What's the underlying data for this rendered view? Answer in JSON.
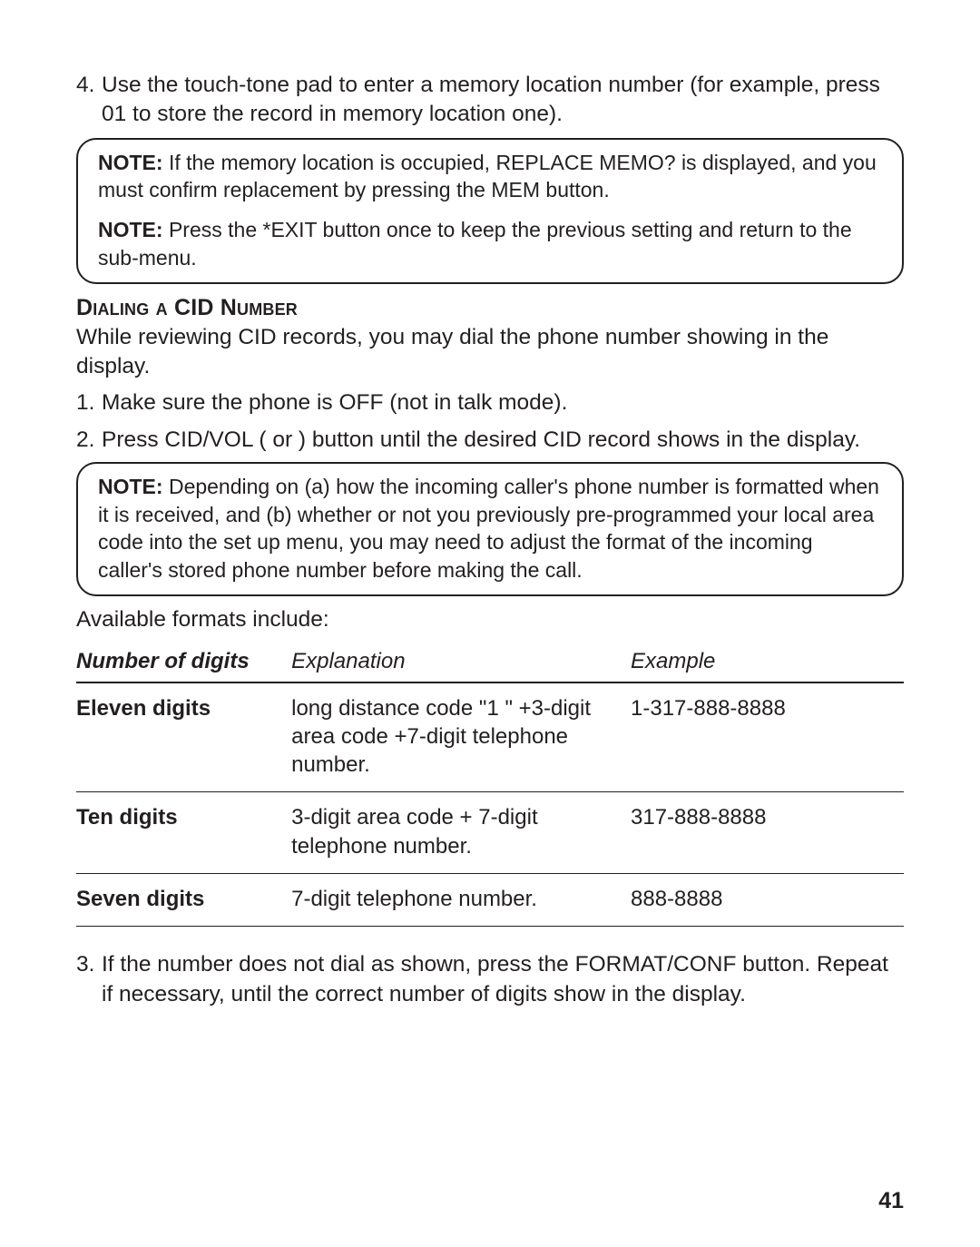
{
  "step4": {
    "num": "4.",
    "text": "Use the touch-tone pad to enter a memory location number (for example, press 01 to store the record in memory location one)."
  },
  "noteBox1": {
    "p1_label": "NOTE:",
    "p1_text": " If the memory location is occupied,  REPLACE MEMO? is displayed, and you must confirm replacement by pressing the MEM button.",
    "p2_label": "NOTE:",
    "p2_text": " Press the *EXIT button once to keep the previous setting and return to the sub-menu."
  },
  "section": {
    "heading": "Dialing a CID Number",
    "intro": "While reviewing CID records, you may dial the phone number showing in the display."
  },
  "steps12": [
    {
      "num": "1.",
      "pre": "Make sure the phone is ",
      "bold": "OFF",
      "post": " (not in talk mode)."
    },
    {
      "num": "2.",
      "pre": "Press CID/VOL (     or     ) button until the desired CID record shows in the display.",
      "bold": "",
      "post": ""
    }
  ],
  "noteBox2": {
    "label": "NOTE:",
    "text": " Depending on (a) how the incoming caller's phone number is formatted when it is received, and (b) whether or not you previously pre-programmed your local area code into the set up menu, you may need to adjust the format of the incoming caller's stored phone number before making the call."
  },
  "available": "Available formats include:",
  "table": {
    "headers": [
      "Number of digits",
      "Explanation",
      "Example"
    ],
    "rows": [
      [
        "Eleven digits",
        "long distance code \"1 \" +3-digit area code +7-digit telephone number.",
        "1-317-888-8888"
      ],
      [
        "Ten digits",
        "3-digit area code + 7-digit telephone number.",
        "317-888-8888"
      ],
      [
        "Seven digits",
        "7-digit telephone number.",
        "888-8888"
      ]
    ]
  },
  "step3": {
    "num": "3.",
    "text": "If the number does not dial as shown, press the FORMAT/CONF button. Repeat if necessary, until the correct number of digits show in the display."
  },
  "pageNumber": "41"
}
